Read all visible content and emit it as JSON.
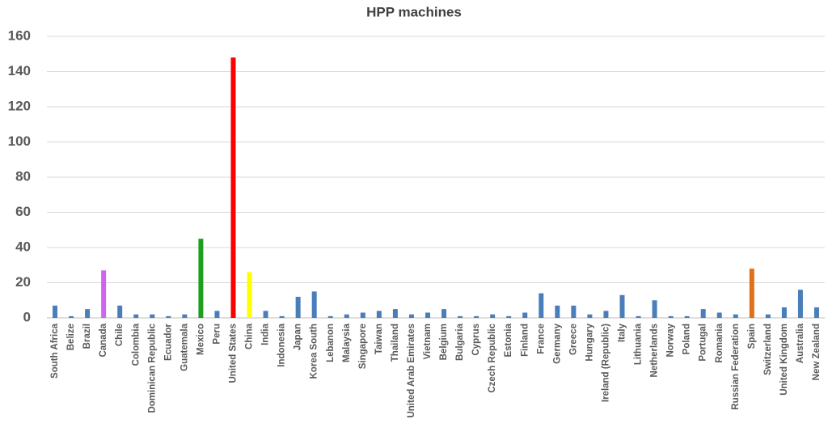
{
  "chart_data": {
    "type": "bar",
    "title": "HPP machines",
    "categories": [
      "South Africa",
      "Belize",
      "Brazil",
      "Canada",
      "Chile",
      "Colombia",
      "Dominican Republic",
      "Ecuador",
      "Guatemala",
      "Mexico",
      "Peru",
      "United States",
      "China",
      "India",
      "Indonesia",
      "Japan",
      "Korea South",
      "Lebanon",
      "Malaysia",
      "Singapore",
      "Taiwan",
      "Thailand",
      "United Arab Emirates",
      "Vietnam",
      "Belgium",
      "Bulgaria",
      "Cyprus",
      "Czech Republic",
      "Estonia",
      "Finland",
      "France",
      "Germany",
      "Greece",
      "Hungary",
      "Ireland (Republic)",
      "Italy",
      "Lithuania",
      "Netherlands",
      "Norway",
      "Poland",
      "Portugal",
      "Romania",
      "Russian Federation",
      "Spain",
      "Switzerland",
      "United Kingdom",
      "Australia",
      "New Zealand"
    ],
    "values": [
      7,
      1,
      5,
      27,
      7,
      2,
      2,
      1,
      2,
      45,
      4,
      148,
      26,
      4,
      1,
      12,
      15,
      1,
      2,
      3,
      4,
      5,
      2,
      3,
      5,
      1,
      1,
      2,
      1,
      3,
      14,
      7,
      7,
      2,
      4,
      13,
      1,
      10,
      1,
      1,
      5,
      3,
      2,
      28,
      2,
      6,
      16,
      6
    ],
    "color": "#4a7ebb",
    "colors": {
      "3": "#cc66ee",
      "9": "#1f9e1f",
      "11": "#ff0000",
      "12": "#ffff00",
      "43": "#e0701c"
    },
    "ylim": [
      0,
      160
    ],
    "yticks": [
      0,
      20,
      40,
      60,
      80,
      100,
      120,
      140,
      160
    ],
    "grid": true
  }
}
